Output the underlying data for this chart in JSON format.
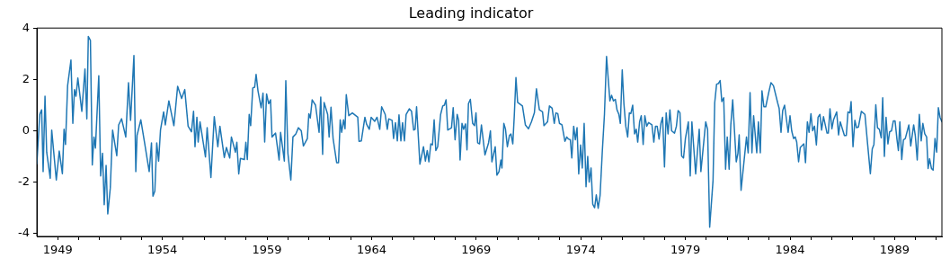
{
  "chart_data": {
    "type": "line",
    "title": "Leading indicator",
    "color": "#1f77b4",
    "xlim": [
      1948,
      1991.26
    ],
    "ylim": [
      -4.13,
      4.0
    ],
    "xticks": [
      1949,
      {
        "value": 1950,
        "label": null
      },
      {
        "value": 1951,
        "label": null
      },
      {
        "value": 1952,
        "label": null
      },
      {
        "value": 1953,
        "label": null
      },
      1954,
      {
        "value": 1955,
        "label": null
      },
      {
        "value": 1956,
        "label": null
      },
      {
        "value": 1957,
        "label": null
      },
      {
        "value": 1958,
        "label": null
      },
      1959,
      {
        "value": 1960,
        "label": null
      },
      {
        "value": 1961,
        "label": null
      },
      {
        "value": 1962,
        "label": null
      },
      {
        "value": 1963,
        "label": null
      },
      1964,
      {
        "value": 1965,
        "label": null
      },
      {
        "value": 1966,
        "label": null
      },
      {
        "value": 1967,
        "label": null
      },
      {
        "value": 1968,
        "label": null
      },
      1969,
      {
        "value": 1970,
        "label": null
      },
      {
        "value": 1971,
        "label": null
      },
      {
        "value": 1972,
        "label": null
      },
      {
        "value": 1973,
        "label": null
      },
      1974,
      {
        "value": 1975,
        "label": null
      },
      {
        "value": 1976,
        "label": null
      },
      {
        "value": 1977,
        "label": null
      },
      {
        "value": 1978,
        "label": null
      },
      1979,
      {
        "value": 1980,
        "label": null
      },
      {
        "value": 1981,
        "label": null
      },
      {
        "value": 1982,
        "label": null
      },
      {
        "value": 1983,
        "label": null
      },
      1984,
      {
        "value": 1985,
        "label": null
      },
      {
        "value": 1986,
        "label": null
      },
      {
        "value": 1987,
        "label": null
      },
      {
        "value": 1988,
        "label": null
      },
      1989,
      {
        "value": 1990,
        "label": null
      },
      {
        "value": 1991,
        "label": null
      }
    ],
    "yticks": [
      -4,
      -2,
      0,
      2,
      4
    ],
    "x": [
      1948.0,
      1948.14,
      1948.23,
      1948.3,
      1948.39,
      1948.47,
      1948.64,
      1948.71,
      1948.93,
      1949.07,
      1949.22,
      1949.3,
      1949.37,
      1949.47,
      1949.63,
      1949.72,
      1949.8,
      1949.87,
      1949.96,
      1950.15,
      1950.3,
      1950.39,
      1950.46,
      1950.56,
      1950.65,
      1950.73,
      1950.8,
      1950.96,
      1951.05,
      1951.14,
      1951.22,
      1951.31,
      1951.39,
      1951.51,
      1951.62,
      1951.82,
      1951.91,
      1952.05,
      1952.25,
      1952.38,
      1952.48,
      1952.64,
      1952.73,
      1952.79,
      1952.97,
      1953.15,
      1953.37,
      1953.48,
      1953.55,
      1953.64,
      1953.73,
      1953.82,
      1953.91,
      1954.06,
      1954.14,
      1954.31,
      1954.55,
      1954.73,
      1954.92,
      1955.07,
      1955.23,
      1955.39,
      1955.49,
      1955.56,
      1955.65,
      1955.71,
      1955.8,
      1956.06,
      1956.14,
      1956.32,
      1956.48,
      1956.65,
      1956.75,
      1956.96,
      1957.06,
      1957.22,
      1957.3,
      1957.49,
      1957.56,
      1957.65,
      1957.73,
      1957.92,
      1957.99,
      1958.06,
      1958.15,
      1958.22,
      1958.32,
      1958.41,
      1958.48,
      1958.57,
      1958.72,
      1958.81,
      1958.89,
      1958.98,
      1959.08,
      1959.17,
      1959.24,
      1959.41,
      1959.58,
      1959.65,
      1959.83,
      1959.9,
      1960.0,
      1960.14,
      1960.24,
      1960.38,
      1960.5,
      1960.64,
      1960.74,
      1960.93,
      1961.0,
      1961.07,
      1961.16,
      1961.32,
      1961.49,
      1961.57,
      1961.66,
      1961.73,
      1961.9,
      1961.97,
      1962.06,
      1962.16,
      1962.33,
      1962.42,
      1962.5,
      1962.57,
      1962.66,
      1962.73,
      1962.79,
      1962.91,
      1963.08,
      1963.34,
      1963.4,
      1963.51,
      1963.68,
      1963.76,
      1963.89,
      1963.98,
      1964.15,
      1964.26,
      1964.39,
      1964.48,
      1964.65,
      1964.75,
      1964.82,
      1964.98,
      1965.05,
      1965.14,
      1965.23,
      1965.31,
      1965.4,
      1965.48,
      1965.57,
      1965.65,
      1965.8,
      1965.91,
      1966.01,
      1966.08,
      1966.15,
      1966.31,
      1966.48,
      1966.57,
      1966.66,
      1966.74,
      1966.83,
      1966.91,
      1966.99,
      1967.07,
      1967.16,
      1967.3,
      1967.4,
      1967.48,
      1967.56,
      1967.64,
      1967.82,
      1967.9,
      1967.99,
      1968.09,
      1968.16,
      1968.23,
      1968.32,
      1968.4,
      1968.49,
      1968.56,
      1968.63,
      1968.72,
      1968.83,
      1968.92,
      1968.99,
      1969.07,
      1969.16,
      1969.25,
      1969.42,
      1969.59,
      1969.68,
      1969.75,
      1969.91,
      1969.99,
      1970.09,
      1970.18,
      1970.23,
      1970.32,
      1970.4,
      1970.49,
      1970.59,
      1970.66,
      1970.75,
      1970.82,
      1970.9,
      1970.98,
      1971.21,
      1971.35,
      1971.5,
      1971.64,
      1971.78,
      1971.88,
      1972.02,
      1972.17,
      1972.24,
      1972.41,
      1972.5,
      1972.63,
      1972.73,
      1972.81,
      1972.9,
      1972.98,
      1973.1,
      1973.24,
      1973.33,
      1973.41,
      1973.5,
      1973.57,
      1973.66,
      1973.74,
      1973.82,
      1973.9,
      1973.99,
      1974.07,
      1974.16,
      1974.25,
      1974.33,
      1974.4,
      1974.49,
      1974.57,
      1974.66,
      1974.74,
      1974.83,
      1974.92,
      1975.03,
      1975.13,
      1975.23,
      1975.39,
      1975.47,
      1975.56,
      1975.65,
      1975.73,
      1975.82,
      1975.89,
      1975.98,
      1976.06,
      1976.15,
      1976.24,
      1976.32,
      1976.39,
      1976.48,
      1976.57,
      1976.65,
      1976.72,
      1976.81,
      1976.89,
      1976.98,
      1977.06,
      1977.15,
      1977.24,
      1977.4,
      1977.49,
      1977.57,
      1977.65,
      1977.74,
      1977.83,
      1977.91,
      1978.0,
      1978.08,
      1978.17,
      1978.26,
      1978.34,
      1978.48,
      1978.57,
      1978.65,
      1978.74,
      1978.82,
      1978.91,
      1979.0,
      1979.14,
      1979.23,
      1979.31,
      1979.49,
      1979.66,
      1979.74,
      1979.97,
      1980.06,
      1980.16,
      1980.32,
      1980.4,
      1980.49,
      1980.57,
      1980.66,
      1980.74,
      1980.83,
      1980.92,
      1981.0,
      1981.09,
      1981.17,
      1981.26,
      1981.43,
      1981.51,
      1981.57,
      1981.66,
      1981.92,
      1982.0,
      1982.09,
      1982.18,
      1982.26,
      1982.41,
      1982.49,
      1982.58,
      1982.66,
      1982.75,
      1982.84,
      1982.98,
      1983.09,
      1983.21,
      1983.41,
      1983.48,
      1983.57,
      1983.65,
      1983.74,
      1983.91,
      1984.0,
      1984.08,
      1984.17,
      1984.25,
      1984.32,
      1984.41,
      1984.49,
      1984.66,
      1984.74,
      1984.83,
      1984.91,
      1985.0,
      1985.08,
      1985.17,
      1985.26,
      1985.34,
      1985.43,
      1985.51,
      1985.6,
      1985.77,
      1985.83,
      1985.91,
      1986.0,
      1986.08,
      1986.23,
      1986.32,
      1986.4,
      1986.6,
      1986.69,
      1986.77,
      1986.86,
      1986.92,
      1987.01,
      1987.1,
      1987.18,
      1987.27,
      1987.41,
      1987.58,
      1987.71,
      1987.84,
      1987.93,
      1988.01,
      1988.1,
      1988.18,
      1988.27,
      1988.36,
      1988.43,
      1988.51,
      1988.59,
      1988.68,
      1988.76,
      1988.85,
      1988.94,
      1989.02,
      1989.11,
      1989.18,
      1989.25,
      1989.34,
      1989.42,
      1989.51,
      1989.68,
      1989.77,
      1989.91,
      1989.99,
      1990.08,
      1990.18,
      1990.27,
      1990.35,
      1990.44,
      1990.53,
      1990.6,
      1990.67,
      1990.76,
      1990.84,
      1990.93,
      1991.01,
      1991.09,
      1991.17,
      1991.26
    ],
    "values": [
      -1.3,
      0.63,
      0.81,
      -1.6,
      1.34,
      -0.84,
      -1.86,
      0.02,
      -1.93,
      -0.8,
      -1.68,
      0.05,
      -0.54,
      1.75,
      2.75,
      0.28,
      1.6,
      1.34,
      2.05,
      0.75,
      2.4,
      0.46,
      3.67,
      3.52,
      -1.34,
      -0.25,
      -0.68,
      2.14,
      -1.77,
      -0.89,
      -2.89,
      -1.36,
      -3.25,
      -2.25,
      0.02,
      -0.98,
      0.22,
      0.46,
      -0.25,
      1.87,
      0.4,
      2.93,
      -1.6,
      -0.19,
      0.42,
      -0.48,
      -1.6,
      -0.48,
      -2.56,
      -2.36,
      -0.48,
      -1.19,
      0.02,
      0.73,
      0.22,
      1.16,
      0.19,
      1.73,
      1.25,
      1.6,
      0.17,
      -0.05,
      0.75,
      -0.63,
      0.52,
      -0.45,
      0.34,
      -1.03,
      0.11,
      -1.83,
      0.54,
      -0.63,
      0.17,
      -1.05,
      -0.66,
      -1.07,
      -0.25,
      -0.84,
      -0.46,
      -1.69,
      -1.09,
      -1.13,
      -0.46,
      -1.13,
      0.63,
      0.19,
      1.66,
      1.69,
      2.19,
      1.55,
      0.89,
      1.46,
      -0.45,
      1.43,
      1.05,
      1.2,
      -0.25,
      -0.1,
      -1.15,
      -0.07,
      -1.19,
      1.95,
      -0.89,
      -1.93,
      -0.25,
      -0.13,
      0.11,
      -0.01,
      -0.6,
      -0.31,
      0.66,
      0.49,
      1.2,
      0.99,
      -0.07,
      1.31,
      -0.93,
      1.1,
      0.63,
      -0.25,
      0.91,
      -0.31,
      -1.25,
      -1.25,
      0.42,
      -0.07,
      0.42,
      0.07,
      1.4,
      0.58,
      0.69,
      0.52,
      -0.42,
      -0.4,
      0.52,
      0.25,
      0.05,
      0.52,
      0.36,
      0.52,
      0.05,
      0.93,
      0.63,
      0.05,
      0.46,
      0.4,
      -0.31,
      0.31,
      -0.4,
      0.61,
      -0.4,
      0.31,
      -0.4,
      0.63,
      0.85,
      0.75,
      0.02,
      0.05,
      0.93,
      -1.31,
      -0.63,
      -1.19,
      -0.78,
      -1.22,
      -0.52,
      -0.56,
      0.42,
      -0.78,
      -0.63,
      0.63,
      0.96,
      0.99,
      1.2,
      0.02,
      0.11,
      0.89,
      -0.36,
      0.63,
      0.4,
      -1.15,
      0.28,
      0.05,
      0.26,
      -0.75,
      1.05,
      1.22,
      0.28,
      0.19,
      0.69,
      -0.48,
      -0.52,
      0.22,
      -0.95,
      -0.48,
      -0.01,
      -1.22,
      -0.63,
      -1.74,
      -1.6,
      -1.15,
      -1.46,
      0.28,
      0.05,
      -0.63,
      -0.19,
      -0.13,
      -0.52,
      0.58,
      2.07,
      1.1,
      0.96,
      0.22,
      0.07,
      0.34,
      0.69,
      1.63,
      0.81,
      0.73,
      0.19,
      0.34,
      0.96,
      0.87,
      0.28,
      0.69,
      0.66,
      0.28,
      0.22,
      -0.42,
      -0.25,
      -0.33,
      -0.36,
      -1.07,
      0.17,
      -0.36,
      0.11,
      -1.69,
      -0.56,
      -1.46,
      0.28,
      -2.19,
      -1.01,
      -2.01,
      -1.46,
      -2.87,
      -3.01,
      -2.51,
      -3.03,
      -2.54,
      -0.78,
      0.63,
      2.89,
      1.16,
      1.38,
      1.16,
      1.22,
      0.81,
      0.63,
      0.28,
      2.37,
      1.05,
      0.17,
      -0.25,
      0.69,
      0.66,
      0.99,
      -0.13,
      0.05,
      -0.45,
      0.34,
      0.58,
      -0.54,
      0.58,
      0.17,
      0.31,
      0.22,
      -0.45,
      0.17,
      0.17,
      -0.33,
      0.28,
      0.52,
      -1.42,
      0.69,
      -0.13,
      0.81,
      -0.01,
      -0.1,
      0.17,
      0.78,
      0.69,
      -0.99,
      -1.07,
      -0.31,
      0.34,
      -1.77,
      0.34,
      -1.69,
      0.05,
      -1.6,
      0.34,
      0.05,
      -3.77,
      -1.95,
      1.08,
      1.81,
      1.83,
      1.95,
      1.13,
      1.28,
      -1.51,
      -0.25,
      -1.51,
      0.22,
      1.2,
      -1.22,
      -0.89,
      -0.17,
      -2.33,
      -0.25,
      -0.87,
      1.48,
      -0.87,
      0.58,
      -0.87,
      0.34,
      -0.87,
      1.55,
      0.93,
      0.93,
      1.48,
      1.87,
      1.75,
      1.08,
      0.87,
      -0.07,
      0.78,
      0.99,
      -0.07,
      0.58,
      -0.01,
      -0.31,
      -0.25,
      -0.45,
      -1.22,
      -0.66,
      -0.52,
      -1.25,
      0.34,
      -0.07,
      0.66,
      -0.01,
      0.17,
      -0.56,
      0.52,
      0.63,
      0.02,
      0.54,
      -0.1,
      -0.1,
      0.85,
      0.07,
      0.42,
      0.73,
      -0.17,
      0.34,
      -0.19,
      -0.19,
      0.73,
      0.69,
      1.13,
      -0.63,
      0.4,
      0.11,
      0.14,
      0.75,
      0.63,
      -0.54,
      -1.68,
      -0.72,
      -0.54,
      1.01,
      0.11,
      0.05,
      -0.28,
      1.28,
      -1.01,
      0.52,
      -0.52,
      -0.05,
      -0.01,
      0.38,
      0.38,
      -0.33,
      -0.78,
      0.34,
      -1.13,
      -0.36,
      -0.31,
      0.22,
      -0.6,
      0.22,
      -0.21,
      -1.15,
      0.63,
      -0.4,
      0.28,
      -0.13,
      -0.25,
      -1.48,
      -1.1,
      -1.48,
      -1.54,
      -0.31,
      -0.84,
      0.89,
      0.52,
      0.34
    ]
  }
}
